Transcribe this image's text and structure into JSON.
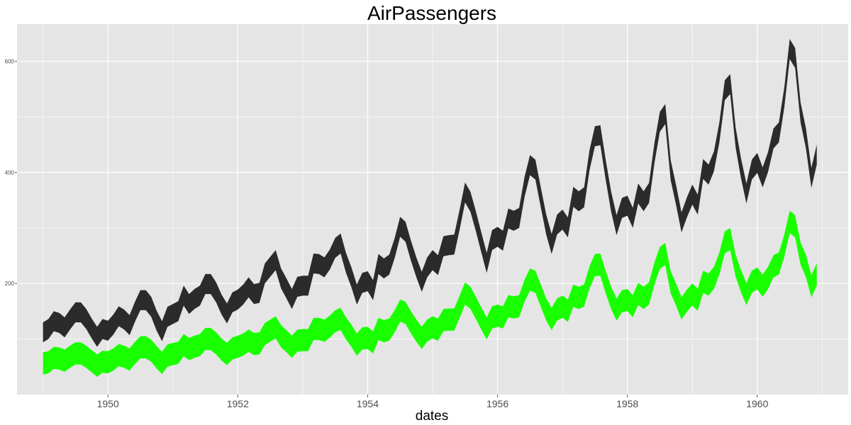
{
  "chart_data": {
    "type": "area",
    "title": "AirPassengers",
    "xlabel": "dates",
    "ylabel": "",
    "x_start": "1949-01",
    "x_end": "1960-12",
    "xlim": [
      1948.6,
      1961.4
    ],
    "ylim": [
      0,
      667
    ],
    "x_ticks": [
      1950,
      1952,
      1954,
      1956,
      1958,
      1960
    ],
    "x_tick_labels": [
      "1950",
      "1952",
      "1954",
      "1956",
      "1958",
      "1960"
    ],
    "y_ticks": [
      200,
      400,
      600
    ],
    "y_tick_labels": [
      "200",
      "400",
      "600"
    ],
    "grid": true,
    "legend": "none",
    "background": "#e5e5e5",
    "grid_color": "#ffffff",
    "series": [
      {
        "color": "#2b2b2b",
        "center": [
          112,
          118,
          132,
          129,
          121,
          135,
          148,
          148,
          136,
          119,
          104,
          118,
          115,
          126,
          141,
          135,
          125,
          149,
          170,
          170,
          158,
          133,
          114,
          140,
          145,
          150,
          178,
          163,
          172,
          178,
          199,
          199,
          184,
          162,
          146,
          166,
          171,
          180,
          193,
          181,
          183,
          218,
          230,
          242,
          209,
          191,
          172,
          194,
          196,
          196,
          236,
          235,
          229,
          243,
          264,
          272,
          237,
          211,
          180,
          201,
          204,
          188,
          235,
          227,
          234,
          264,
          302,
          293,
          259,
          229,
          203,
          229,
          242,
          233,
          267,
          269,
          270,
          315,
          364,
          347,
          312,
          274,
          237,
          278,
          284,
          277,
          317,
          313,
          318,
          374,
          413,
          405,
          355,
          306,
          271,
          306,
          315,
          301,
          356,
          348,
          355,
          422,
          465,
          467,
          404,
          347,
          305,
          336,
          340,
          318,
          362,
          348,
          363,
          435,
          491,
          505,
          404,
          359,
          310,
          337,
          360,
          342,
          406,
          396,
          420,
          472,
          548,
          559,
          463,
          407,
          362,
          405,
          417,
          391,
          419,
          461,
          472,
          535,
          622,
          606,
          508,
          461,
          390,
          432
        ],
        "half_width": 18
      },
      {
        "color": "#1aff00",
        "center": [
          56,
          58,
          66,
          65,
          61,
          68,
          74,
          74,
          68,
          60,
          52,
          59,
          58,
          63,
          71,
          68,
          63,
          75,
          85,
          85,
          79,
          67,
          57,
          70,
          73,
          75,
          89,
          82,
          86,
          89,
          100,
          100,
          92,
          81,
          73,
          83,
          86,
          90,
          97,
          91,
          92,
          109,
          115,
          121,
          105,
          96,
          86,
          97,
          98,
          98,
          118,
          118,
          115,
          122,
          132,
          136,
          119,
          106,
          90,
          101,
          102,
          94,
          118,
          114,
          117,
          132,
          151,
          147,
          130,
          115,
          102,
          115,
          121,
          117,
          134,
          135,
          135,
          158,
          182,
          174,
          156,
          137,
          119,
          139,
          142,
          139,
          159,
          157,
          159,
          187,
          207,
          203,
          178,
          153,
          136,
          153,
          158,
          151,
          178,
          174,
          178,
          211,
          233,
          234,
          202,
          174,
          153,
          168,
          170,
          159,
          181,
          174,
          182,
          218,
          246,
          253,
          202,
          180,
          155,
          169,
          180,
          171,
          203,
          198,
          210,
          236,
          274,
          280,
          232,
          204,
          181,
          203,
          209,
          196,
          210,
          231,
          236,
          268,
          311,
          303,
          254,
          231,
          195,
          216
        ],
        "half_width": 20
      }
    ]
  }
}
